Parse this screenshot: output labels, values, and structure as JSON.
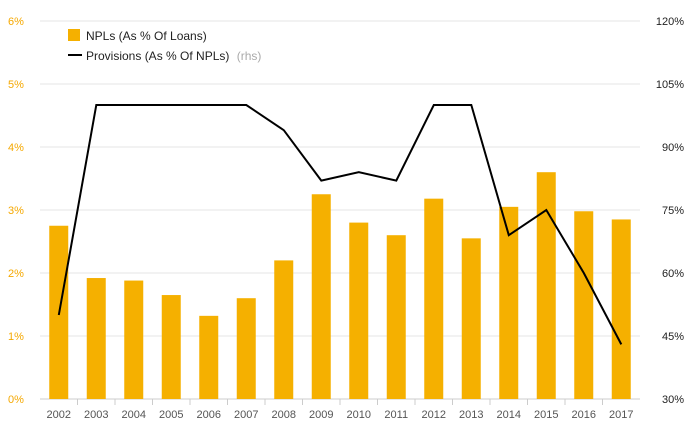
{
  "chart_data": {
    "type": "bar",
    "categories": [
      "2002",
      "2003",
      "2004",
      "2005",
      "2006",
      "2007",
      "2008",
      "2009",
      "2010",
      "2011",
      "2012",
      "2013",
      "2014",
      "2015",
      "2016",
      "2017"
    ],
    "series": [
      {
        "name": "NPLs (As % Of Loans)",
        "type": "bar",
        "axis": "left",
        "color": "#f5b000",
        "values": [
          2.75,
          1.92,
          1.88,
          1.65,
          1.32,
          1.6,
          2.2,
          3.25,
          2.8,
          2.6,
          3.18,
          2.55,
          3.05,
          3.6,
          2.98,
          2.85
        ]
      },
      {
        "name": "Provisions (As % Of NPLs)",
        "name_suffix": "(rhs)",
        "type": "line",
        "axis": "right",
        "color": "#000000",
        "values": [
          50,
          100,
          100,
          100,
          100,
          100,
          94,
          82,
          84,
          82,
          100,
          100,
          69,
          75,
          60,
          43
        ]
      }
    ],
    "y_left": {
      "ticks": [
        "0%",
        "1%",
        "2%",
        "3%",
        "4%",
        "5%",
        "6%"
      ],
      "ylim": [
        0,
        6
      ],
      "color": "#f5a800"
    },
    "y_right": {
      "ticks": [
        "30%",
        "45%",
        "60%",
        "75%",
        "90%",
        "105%",
        "120%"
      ],
      "ylim": [
        30,
        120
      ],
      "color": "#222222"
    },
    "grid": "horizontal",
    "legend": "top-left"
  }
}
